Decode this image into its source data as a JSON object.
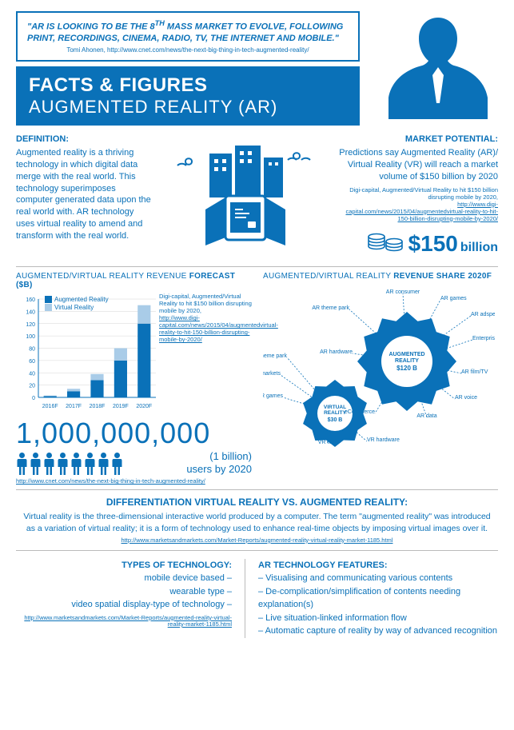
{
  "colors": {
    "primary": "#0a71b8",
    "light": "#a9cce8",
    "grid": "#d6d6d6",
    "bg": "#ffffff"
  },
  "quote": {
    "text": "\"AR IS LOOKING TO BE THE 8TH MASS MARKET TO EVOLVE, FOLLOWING PRINT, RECORDINGS, CINEMA, RADIO, TV, THE INTERNET AND MOBILE.\"",
    "source": "Tomi Ahonen, http://www.cnet.com/news/the-next-big-thing-in-tech-augmented-reality/",
    "sup": "TH"
  },
  "title": {
    "main": "FACTS & FIGURES",
    "sub": "AUGMENTED REALITY (AR)"
  },
  "definition": {
    "heading": "DEFINITION:",
    "body": "Augmented reality is a thriving technology in which digital data merge with the real world. This technology superimposes computer generated data upon the real world with. AR technology uses virtual reality to amend and transform with the real world."
  },
  "market": {
    "heading": "MARKET POTENTIAL:",
    "body": "Predictions say Augmented Reality (AR)/ Virtual Reality (VR) will reach a market volume of $150 billion by 2020",
    "src1": "Digi-capital, Augmented/Virtual Reality to hit $150 billion disrupting mobile by 2020,",
    "src2": "http://www.digi-capital.com/news/2015/04/augmentedvirtual-reality-to-hit-150-billion-disrupting-mobile-by-2020/",
    "value": "$150",
    "unit": "billion"
  },
  "chart": {
    "title_pre": "AUGMENTED/VIRTUAL REALITY REVENUE ",
    "title_bold": "FORECAST ($B)",
    "legend_ar": "Augmented Reality",
    "legend_vr": "Virtual Reality",
    "years": [
      "2016F",
      "2017F",
      "2018F",
      "2019F",
      "2020F"
    ],
    "ar": [
      2,
      10,
      28,
      60,
      120
    ],
    "vr": [
      1,
      4,
      10,
      20,
      30
    ],
    "ymax": 160,
    "ytick": 20,
    "src1": "Digi-capital, Augmented/Virtual Reality to hit $150 billion disrupting mobile by 2020,",
    "src2": "http://www.digi-capital.com/news/2015/04/augmentedvirtual-reality-to-hit-150-billion-disrupting-mobile-by-2020/"
  },
  "billion": {
    "num": "1,000,000,000",
    "sub1": "(1 billion)",
    "sub2": "users by 2020",
    "link": "http://www.cnet.com/news/the-next-big-thing-in-tech-augmented-reality/"
  },
  "share": {
    "title_pre": "AUGMENTED/VIRTUAL REALITY ",
    "title_bold": "REVENUE SHARE 2020F",
    "ar_center1": "AUGMENTED",
    "ar_center2": "REALITY",
    "ar_value": "$120 B",
    "vr_center1": "VIRTUAL",
    "vr_center2": "REALITY",
    "vr_value": "$30 B",
    "ar_labels": [
      "AR consumer",
      "AR games",
      "AR adspend",
      "Enterprise AR",
      "AR film/TV",
      "AR voice",
      "AR data",
      "eCommerce",
      "AR hardware",
      "AR theme park"
    ],
    "vr_labels": [
      "VR theme park",
      "VR niche markets",
      "VR games",
      "VR film",
      "VR hardware"
    ]
  },
  "diff": {
    "title": "DIFFERENTIATION VIRTUAL REALITY VS. AUGMENTED REALITY:",
    "text": "Virtual reality is the three-dimensional interactive world produced by a computer. The term \"augmented reality\" was introduced as a variation of virtual reality; it is a form of technology used to enhance real-time objects by imposing virtual images over it.",
    "link": "http://www.marketsandmarkets.com/Market-Reports/augmented-reality-virtual-reality-market-1185.html"
  },
  "types": {
    "heading": "TYPES OF TECHNOLOGY:",
    "items": [
      "mobile device based –",
      "wearable type –",
      "video spatial display-type of technology –"
    ],
    "link": "http://www.marketsandmarkets.com/Market-Reports/augmented-reality-virtual-reality-market-1185.html"
  },
  "features": {
    "heading": "AR TECHNOLOGY FEATURES:",
    "items": [
      "– Visualising and communicating various contents",
      "– De-complication/simplification of contents needing explanation(s)",
      "– Live situation-linked information flow",
      "– Automatic capture of reality by way of advanced recognition"
    ]
  }
}
